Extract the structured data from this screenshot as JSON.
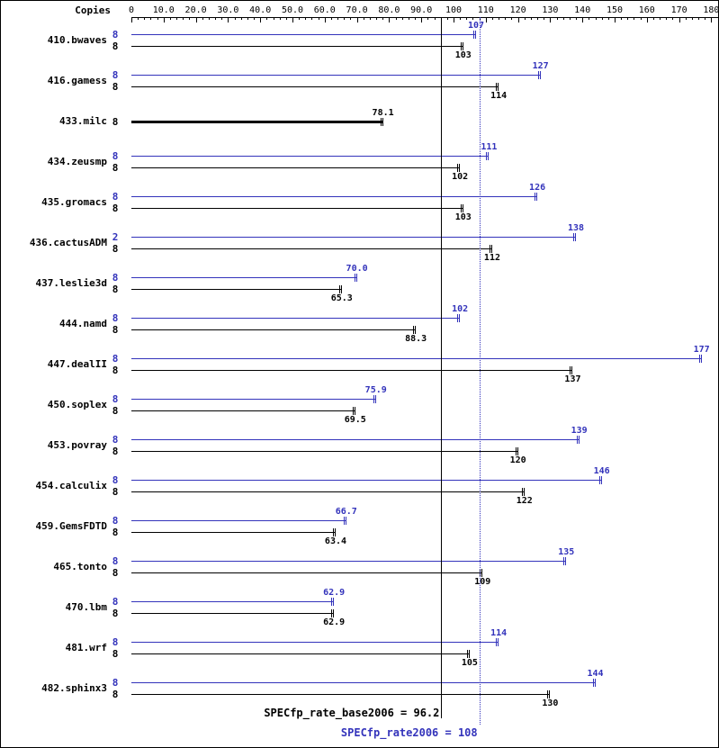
{
  "header": {
    "copies_label": "Copies"
  },
  "colors": {
    "peak": "#3333bb",
    "base": "#000000"
  },
  "axis": {
    "min": 0,
    "max": 180,
    "major_step": 10,
    "minor_step": 2,
    "tick_labels": [
      "0",
      "10.0",
      "20.0",
      "30.0",
      "40.0",
      "50.0",
      "60.0",
      "70.0",
      "80.0",
      "90.0",
      "100",
      "110",
      "120",
      "130",
      "140",
      "150",
      "160",
      "170",
      "180"
    ]
  },
  "chart_data": {
    "type": "bar",
    "orientation": "horizontal",
    "xlim": [
      0,
      180
    ],
    "grid": false,
    "benchmarks": [
      {
        "name": "410.bwaves",
        "peak": {
          "copies": 8,
          "value": 107,
          "label": "107"
        },
        "base": {
          "copies": 8,
          "value": 103,
          "label": "103"
        }
      },
      {
        "name": "416.gamess",
        "peak": {
          "copies": 8,
          "value": 127,
          "label": "127"
        },
        "base": {
          "copies": 8,
          "value": 114,
          "label": "114"
        }
      },
      {
        "name": "433.milc",
        "peak": null,
        "base": {
          "copies": 8,
          "value": 78.1,
          "label": "78.1",
          "thick": true
        }
      },
      {
        "name": "434.zeusmp",
        "peak": {
          "copies": 8,
          "value": 111,
          "label": "111"
        },
        "base": {
          "copies": 8,
          "value": 102,
          "label": "102"
        }
      },
      {
        "name": "435.gromacs",
        "peak": {
          "copies": 8,
          "value": 126,
          "label": "126"
        },
        "base": {
          "copies": 8,
          "value": 103,
          "label": "103"
        }
      },
      {
        "name": "436.cactusADM",
        "peak": {
          "copies": 2,
          "value": 138,
          "label": "138"
        },
        "base": {
          "copies": 8,
          "value": 112,
          "label": "112"
        }
      },
      {
        "name": "437.leslie3d",
        "peak": {
          "copies": 8,
          "value": 70,
          "label": "70.0"
        },
        "base": {
          "copies": 8,
          "value": 65.3,
          "label": "65.3"
        }
      },
      {
        "name": "444.namd",
        "peak": {
          "copies": 8,
          "value": 102,
          "label": "102"
        },
        "base": {
          "copies": 8,
          "value": 88.3,
          "label": "88.3"
        }
      },
      {
        "name": "447.dealII",
        "peak": {
          "copies": 8,
          "value": 177,
          "label": "177"
        },
        "base": {
          "copies": 8,
          "value": 137,
          "label": "137"
        }
      },
      {
        "name": "450.soplex",
        "peak": {
          "copies": 8,
          "value": 75.9,
          "label": "75.9"
        },
        "base": {
          "copies": 8,
          "value": 69.5,
          "label": "69.5"
        }
      },
      {
        "name": "453.povray",
        "peak": {
          "copies": 8,
          "value": 139,
          "label": "139"
        },
        "base": {
          "copies": 8,
          "value": 120,
          "label": "120"
        }
      },
      {
        "name": "454.calculix",
        "peak": {
          "copies": 8,
          "value": 146,
          "label": "146"
        },
        "base": {
          "copies": 8,
          "value": 122,
          "label": "122"
        }
      },
      {
        "name": "459.GemsFDTD",
        "peak": {
          "copies": 8,
          "value": 66.7,
          "label": "66.7"
        },
        "base": {
          "copies": 8,
          "value": 63.4,
          "label": "63.4"
        }
      },
      {
        "name": "465.tonto",
        "peak": {
          "copies": 8,
          "value": 135,
          "label": "135"
        },
        "base": {
          "copies": 8,
          "value": 109,
          "label": "109"
        }
      },
      {
        "name": "470.lbm",
        "peak": {
          "copies": 8,
          "value": 62.9,
          "label": "62.9"
        },
        "base": {
          "copies": 8,
          "value": 62.9,
          "label": "62.9"
        }
      },
      {
        "name": "481.wrf",
        "peak": {
          "copies": 8,
          "value": 114,
          "label": "114"
        },
        "base": {
          "copies": 8,
          "value": 105,
          "label": "105"
        }
      },
      {
        "name": "482.sphinx3",
        "peak": {
          "copies": 8,
          "value": 144,
          "label": "144"
        },
        "base": {
          "copies": 8,
          "value": 130,
          "label": "130"
        }
      }
    ]
  },
  "footer": {
    "base": {
      "label": "SPECfp_rate_base2006 = 96.2",
      "value": 96.2,
      "line_style": "solid"
    },
    "peak": {
      "label": "SPECfp_rate2006 = 108",
      "value": 108,
      "line_style": "dotted"
    }
  }
}
